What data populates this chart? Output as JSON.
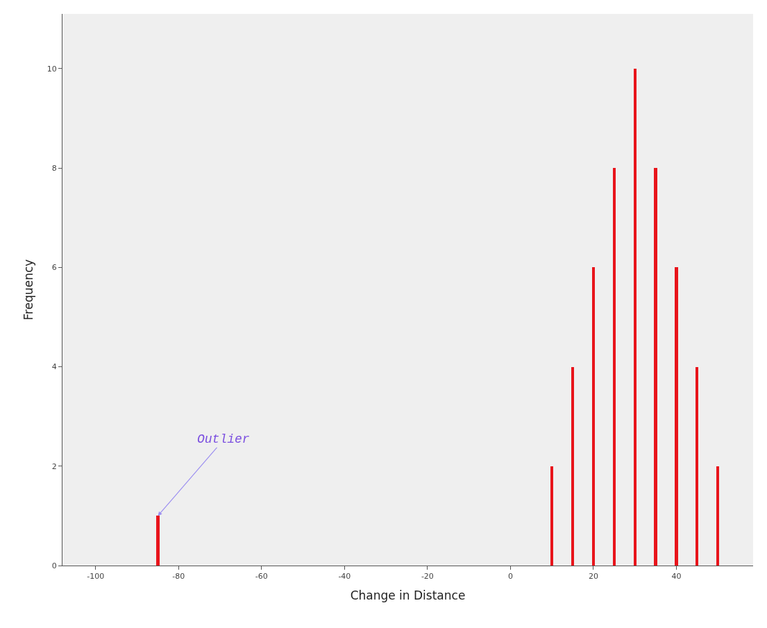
{
  "chart_data": {
    "type": "bar",
    "xlabel": "Change in Distance",
    "ylabel": "Frequency",
    "x": [
      -85,
      10,
      15,
      20,
      25,
      30,
      35,
      40,
      45,
      50
    ],
    "values": [
      1,
      2,
      4,
      6,
      8,
      10,
      8,
      6,
      4,
      2
    ],
    "color": "#e8141b",
    "xlim": [
      -108,
      58.5
    ],
    "xticks": [
      -100,
      -80,
      -60,
      -40,
      -20,
      0,
      20,
      40
    ],
    "ylim": [
      0,
      11.1
    ],
    "yticks": [
      0,
      2,
      4,
      6,
      8,
      10
    ],
    "grid": false,
    "annotations": [
      {
        "text": "Outlier",
        "x": -85,
        "y": 1
      }
    ]
  }
}
